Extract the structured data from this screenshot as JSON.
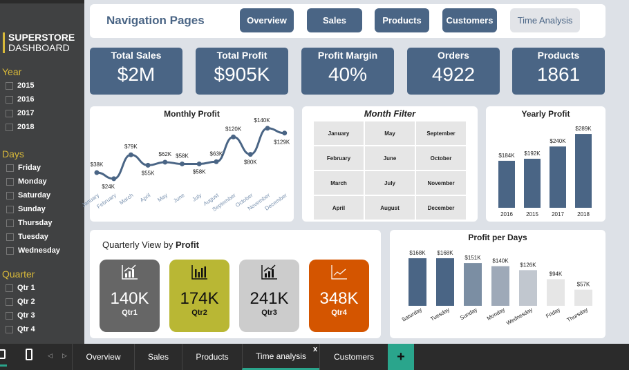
{
  "sidebar": {
    "brand_line1": "SUPERSTORE",
    "brand_line2": "DASHBOARD",
    "year_title": "Year",
    "years": [
      "2015",
      "2016",
      "2017",
      "2018"
    ],
    "days_title": "Days",
    "days": [
      "Friday",
      "Monday",
      "Saturday",
      "Sunday",
      "Thursday",
      "Tuesday",
      "Wednesday"
    ],
    "quarter_title": "Quarter",
    "quarters": [
      "Qtr 1",
      "Qtr 2",
      "Qtr 3",
      "Qtr 4"
    ]
  },
  "nav": {
    "title": "Navigation Pages",
    "buttons": [
      "Overview",
      "Sales",
      "Products",
      "Customers",
      "Time Analysis"
    ]
  },
  "kpis": [
    {
      "label": "Total Sales",
      "value": "$2M"
    },
    {
      "label": "Total Profit",
      "value": "$905K"
    },
    {
      "label": "Profit Margin",
      "value": "40%"
    },
    {
      "label": "Orders",
      "value": "4922"
    },
    {
      "label": "Products",
      "value": "1861"
    }
  ],
  "month_filter": {
    "title": "Month Filter",
    "months": [
      "January",
      "May",
      "September",
      "February",
      "June",
      "October",
      "March",
      "July",
      "November",
      "April",
      "August",
      "December"
    ]
  },
  "quarterly": {
    "title_prefix": "Quarterly View by ",
    "title_bold": "Profit",
    "cards": [
      {
        "value": "140K",
        "label": "Qtr1",
        "color": "#666666"
      },
      {
        "value": "174K",
        "label": "Qtr2",
        "color": "#b9b734"
      },
      {
        "value": "241K",
        "label": "Qtr3",
        "color": "#cccccc"
      },
      {
        "value": "348K",
        "label": "Qtr4",
        "color": "#d45500"
      }
    ]
  },
  "chart_data": [
    {
      "type": "line",
      "title": "Monthly Profit",
      "categories": [
        "January",
        "February",
        "March",
        "April",
        "May",
        "June",
        "July",
        "August",
        "September",
        "October",
        "November",
        "December"
      ],
      "values": [
        38,
        24,
        79,
        55,
        62,
        58,
        58,
        63,
        120,
        80,
        140,
        129
      ],
      "labels": [
        "$38K",
        "$24K",
        "$79K",
        "$55K",
        "$62K",
        "$58K",
        "$58K",
        "$63K",
        "$120K",
        "$80K",
        "$140K",
        "$129K"
      ],
      "color": "#4a6585"
    },
    {
      "type": "bar",
      "title": "Yearly Profit",
      "categories": [
        "2016",
        "2015",
        "2017",
        "2018"
      ],
      "values": [
        184,
        192,
        240,
        289
      ],
      "labels": [
        "$184K",
        "$192K",
        "$240K",
        "$289K"
      ],
      "color": "#4a6585"
    },
    {
      "type": "bar",
      "title": "Profit per Days",
      "categories": [
        "Saturday",
        "Tuesday",
        "Sunday",
        "Monday",
        "Wednesday",
        "Friday",
        "Thursday"
      ],
      "values": [
        168,
        168,
        151,
        140,
        126,
        94,
        57
      ],
      "labels": [
        "$168K",
        "$168K",
        "$151K",
        "$140K",
        "$126K",
        "$94K",
        "$57K"
      ],
      "colors": [
        "#4a6585",
        "#4a6585",
        "#7b8ea3",
        "#9ea9b8",
        "#c1c7cf",
        "#e6e6e6",
        "#e6e6e6"
      ]
    }
  ],
  "bottombar": {
    "tabs": [
      "Overview",
      "Sales",
      "Products",
      "Time analysis",
      "Customers"
    ],
    "add": "+",
    "close": "x"
  }
}
